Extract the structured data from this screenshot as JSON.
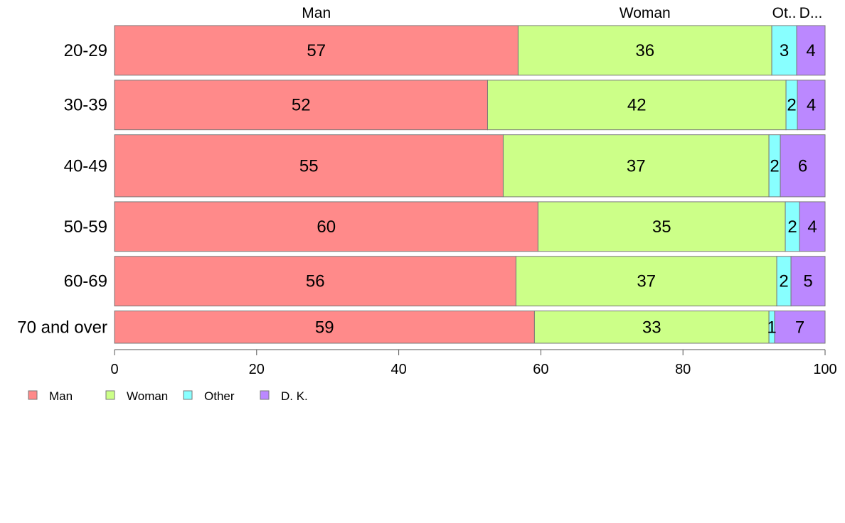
{
  "chart_data": {
    "type": "bar",
    "orientation": "horizontal",
    "stacked": true,
    "title": "",
    "xlabel": "",
    "ylabel": "",
    "xlim": [
      0,
      100
    ],
    "x_ticks": [
      0,
      20,
      40,
      60,
      80,
      100
    ],
    "grid": false,
    "legend_position": "bottom-left",
    "categories": [
      "20-29",
      "30-39",
      "40-49",
      "50-59",
      "60-69",
      "70 and over"
    ],
    "category_weights": [
      4,
      4,
      5,
      4,
      4,
      2.6
    ],
    "series": [
      {
        "name": "Man",
        "values": [
          56.8,
          52.5,
          54.7,
          59.6,
          56.5,
          59.1
        ],
        "labels": [
          "57",
          "52",
          "55",
          "60",
          "56",
          "59"
        ]
      },
      {
        "name": "Woman",
        "values": [
          35.7,
          42.0,
          37.4,
          34.8,
          36.7,
          33.0
        ],
        "labels": [
          "36",
          "42",
          "37",
          "35",
          "37",
          "33"
        ]
      },
      {
        "name": "Other",
        "values": [
          3.5,
          1.6,
          1.6,
          2.0,
          2.0,
          0.8
        ],
        "labels": [
          "3",
          "2",
          "2",
          "2",
          "2",
          "1"
        ]
      },
      {
        "name": "D. K.",
        "values": [
          4.0,
          3.9,
          6.3,
          3.6,
          4.8,
          7.1
        ],
        "labels": [
          "4",
          "4",
          "6",
          "4",
          "5",
          "7"
        ]
      }
    ],
    "top_labels": [
      "Man",
      "Woman",
      "Ot..",
      "D..."
    ],
    "colors": {
      "Man": "#ff8a8a",
      "Woman": "#ccff88",
      "Other": "#88ffff",
      "D. K.": "#bb88ff",
      "outline": "#777777",
      "axis": "#555555"
    }
  }
}
